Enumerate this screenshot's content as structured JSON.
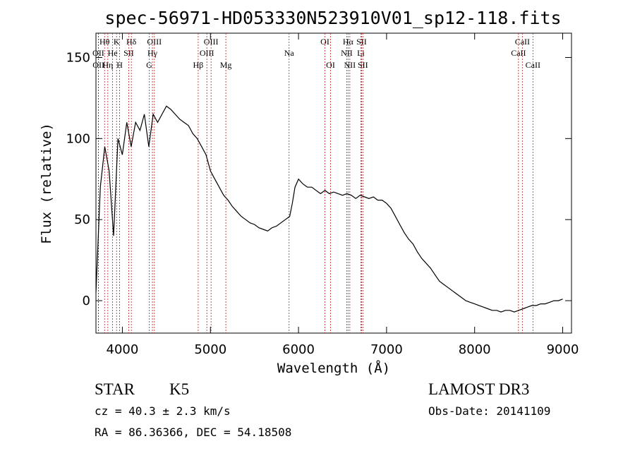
{
  "chart_data": {
    "type": "line",
    "title": "spec-56971-HD053330N523910V01_sp12-118.fits",
    "xlabel": "Wavelength (Å)",
    "ylabel": "Flux (relative)",
    "xlim": [
      3700,
      9100
    ],
    "ylim": [
      -20,
      165
    ],
    "xticks": [
      4000,
      5000,
      6000,
      7000,
      8000,
      9000
    ],
    "yticks": [
      0,
      50,
      100,
      150
    ],
    "series": [
      {
        "name": "flux",
        "x": [
          3700,
          3750,
          3800,
          3850,
          3900,
          3950,
          4000,
          4050,
          4100,
          4150,
          4200,
          4250,
          4300,
          4350,
          4400,
          4450,
          4500,
          4550,
          4600,
          4650,
          4700,
          4750,
          4800,
          4850,
          4900,
          4950,
          5000,
          5050,
          5100,
          5150,
          5200,
          5250,
          5300,
          5350,
          5400,
          5450,
          5500,
          5550,
          5600,
          5650,
          5700,
          5750,
          5800,
          5850,
          5900,
          5930,
          5960,
          6000,
          6050,
          6100,
          6150,
          6200,
          6250,
          6300,
          6350,
          6400,
          6450,
          6500,
          6550,
          6600,
          6650,
          6700,
          6750,
          6800,
          6850,
          6900,
          6950,
          7000,
          7050,
          7100,
          7150,
          7200,
          7250,
          7300,
          7350,
          7400,
          7450,
          7500,
          7550,
          7600,
          7650,
          7700,
          7750,
          7800,
          7850,
          7900,
          7950,
          8000,
          8050,
          8100,
          8150,
          8200,
          8250,
          8300,
          8350,
          8400,
          8450,
          8500,
          8550,
          8600,
          8650,
          8700,
          8750,
          8800,
          8850,
          8900,
          8950,
          9000
        ],
        "y": [
          5,
          70,
          95,
          80,
          40,
          100,
          90,
          110,
          95,
          110,
          105,
          115,
          95,
          115,
          110,
          115,
          120,
          118,
          115,
          112,
          110,
          108,
          103,
          100,
          95,
          90,
          80,
          75,
          70,
          65,
          62,
          58,
          55,
          52,
          50,
          48,
          47,
          45,
          44,
          43,
          45,
          46,
          48,
          50,
          52,
          60,
          70,
          75,
          72,
          70,
          70,
          68,
          66,
          68,
          66,
          67,
          66,
          65,
          66,
          65,
          63,
          65,
          64,
          63,
          64,
          62,
          62,
          60,
          57,
          52,
          47,
          42,
          38,
          35,
          30,
          26,
          23,
          20,
          16,
          12,
          10,
          8,
          6,
          4,
          2,
          0,
          -1,
          -2,
          -3,
          -4,
          -5,
          -6,
          -6,
          -7,
          -6,
          -6,
          -7,
          -6,
          -5,
          -4,
          -3,
          -3,
          -2,
          -2,
          -1,
          0,
          0,
          1
        ],
        "color": "#000000"
      }
    ],
    "lines": [
      {
        "label": "Hθ",
        "wavelength": 3798,
        "row": 1
      },
      {
        "label": "K",
        "wavelength": 3934,
        "row": 1
      },
      {
        "label": "Hδ",
        "wavelength": 4102,
        "row": 1
      },
      {
        "label": "OII",
        "wavelength": 3727,
        "row": 2
      },
      {
        "label": "He",
        "wavelength": 3889,
        "row": 2
      },
      {
        "label": "SII",
        "wavelength": 4072,
        "row": 2
      },
      {
        "label": "OII",
        "wavelength": 3729,
        "row": 3
      },
      {
        "label": "Hη",
        "wavelength": 3835,
        "row": 3
      },
      {
        "label": "H",
        "wavelength": 3969,
        "row": 3
      },
      {
        "label": "OIII",
        "wavelength": 4363,
        "row": 1
      },
      {
        "label": "Hγ",
        "wavelength": 4341,
        "row": 2
      },
      {
        "label": "G",
        "wavelength": 4305,
        "row": 3
      },
      {
        "label": "OIII",
        "wavelength": 5007,
        "row": 1
      },
      {
        "label": "OIII",
        "wavelength": 4959,
        "row": 2
      },
      {
        "label": "Hβ",
        "wavelength": 4861,
        "row": 3
      },
      {
        "label": "Mg",
        "wavelength": 5175,
        "row": 3
      },
      {
        "label": "Na",
        "wavelength": 5893,
        "row": 2
      },
      {
        "label": "OI",
        "wavelength": 6300,
        "row": 1
      },
      {
        "label": "OI",
        "wavelength": 6364,
        "row": 3
      },
      {
        "label": "Hα",
        "wavelength": 6563,
        "row": 1
      },
      {
        "label": "SII",
        "wavelength": 6716,
        "row": 1
      },
      {
        "label": "NII",
        "wavelength": 6548,
        "row": 2
      },
      {
        "label": "Li",
        "wavelength": 6708,
        "row": 2
      },
      {
        "label": "NII",
        "wavelength": 6583,
        "row": 3
      },
      {
        "label": "SII",
        "wavelength": 6731,
        "row": 3
      },
      {
        "label": "CaII",
        "wavelength": 8542,
        "row": 1
      },
      {
        "label": "CaII",
        "wavelength": 8498,
        "row": 2
      },
      {
        "label": "CaII",
        "wavelength": 8662,
        "row": 3
      }
    ]
  },
  "info": {
    "class": "STAR",
    "subclass": "K5",
    "survey": "LAMOST DR3",
    "cz": "cz = 40.3 ± 2.3 km/s",
    "obs_date": "Obs-Date: 20141109",
    "coords": "RA =  86.36366, DEC =  54.18508"
  },
  "colors": {
    "spectrum": "#000000",
    "line_marker": "#b22222",
    "axis": "#000000"
  }
}
